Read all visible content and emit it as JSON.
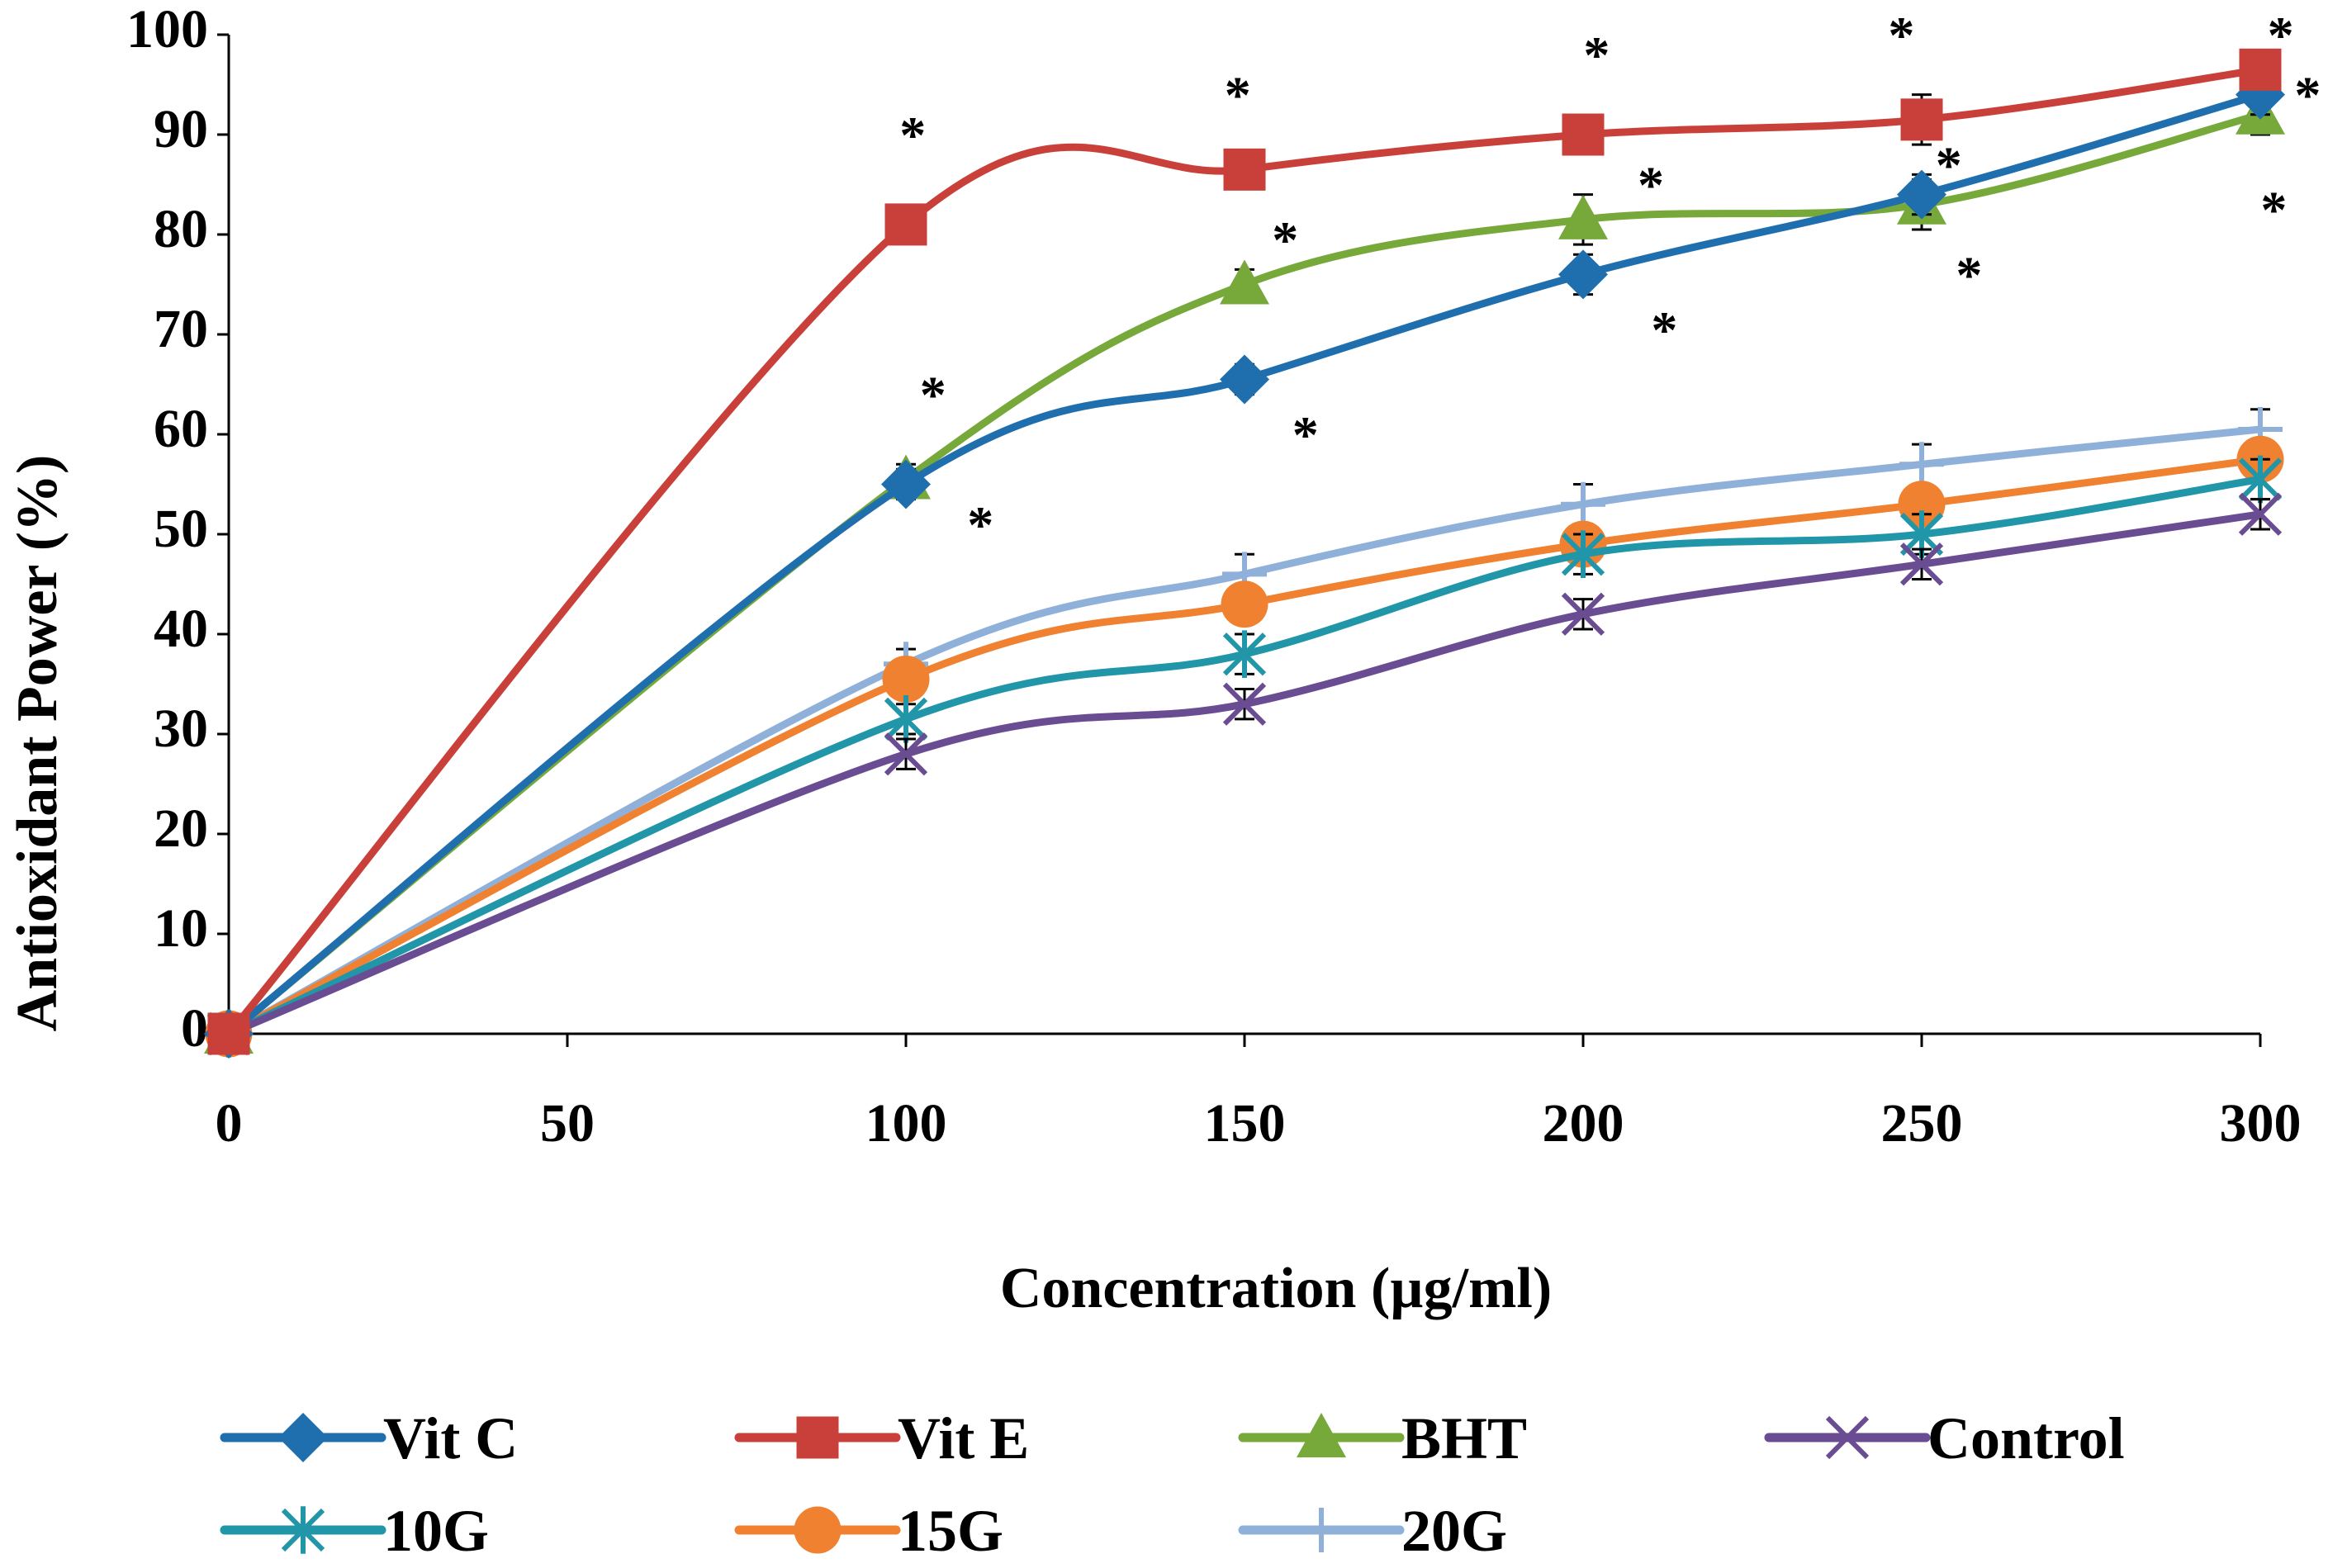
{
  "chart_data": {
    "type": "line",
    "title": "",
    "xlabel": "Concentration (µg/ml)",
    "ylabel": "Antioxidant Power (%)",
    "x": [
      0,
      100,
      150,
      200,
      250,
      300
    ],
    "xlim": [
      0,
      300
    ],
    "ylim": [
      0,
      100
    ],
    "xticks": [
      "0",
      "50",
      "100",
      "150",
      "200",
      "250",
      "300"
    ],
    "yticks": [
      "0",
      "10",
      "20",
      "30",
      "40",
      "50",
      "60",
      "70",
      "80",
      "90",
      "100"
    ],
    "significance_marker": "*",
    "legend_position": "bottom",
    "series": [
      {
        "name": "Vit C",
        "color": "#1F6FAE",
        "marker": "diamond",
        "values": [
          0,
          55,
          65.5,
          76,
          84,
          94
        ],
        "errors": [
          0,
          1.5,
          1.5,
          2,
          2,
          2
        ]
      },
      {
        "name": "Vit E",
        "color": "#C9403A",
        "marker": "square",
        "values": [
          0,
          81,
          86.5,
          90,
          91.5,
          96.5
        ],
        "errors": [
          0,
          1.5,
          1.5,
          1.5,
          2.5,
          1.5
        ]
      },
      {
        "name": "BHT",
        "color": "#76A83A",
        "marker": "triangle",
        "values": [
          0,
          55.5,
          75,
          81.5,
          83,
          92
        ],
        "errors": [
          0,
          1.5,
          1.5,
          2.5,
          2.5,
          2
        ]
      },
      {
        "name": "Control",
        "color": "#6A4C93",
        "marker": "x",
        "values": [
          0,
          28,
          33,
          42,
          47,
          52
        ],
        "errors": [
          0,
          1.5,
          1.5,
          1.5,
          1.5,
          1.5
        ]
      },
      {
        "name": "10G",
        "color": "#2196A8",
        "marker": "asterisk",
        "values": [
          0,
          31.5,
          38,
          48,
          50,
          55.5
        ],
        "errors": [
          0,
          1.5,
          2,
          2,
          2,
          2
        ]
      },
      {
        "name": "15G",
        "color": "#EF8130",
        "marker": "circle",
        "values": [
          0,
          35.5,
          43,
          49,
          53,
          57.5
        ],
        "errors": [
          0,
          1.5,
          2,
          2,
          2,
          2
        ]
      },
      {
        "name": "20G",
        "color": "#8FB1D9",
        "marker": "plus",
        "values": [
          0,
          37,
          46,
          53,
          57,
          60.5
        ],
        "errors": [
          0,
          1.5,
          2,
          2,
          2,
          2
        ]
      }
    ],
    "annotations": [
      {
        "text": "*",
        "x": 101,
        "y": 90.5
      },
      {
        "text": "*",
        "x": 104,
        "y": 64.5
      },
      {
        "text": "*",
        "x": 111,
        "y": 51.5
      },
      {
        "text": "*",
        "x": 149,
        "y": 94.5
      },
      {
        "text": "*",
        "x": 156,
        "y": 80
      },
      {
        "text": "*",
        "x": 159,
        "y": 60.5
      },
      {
        "text": "*",
        "x": 202,
        "y": 98.5
      },
      {
        "text": "*",
        "x": 210,
        "y": 85.5
      },
      {
        "text": "*",
        "x": 212,
        "y": 71
      },
      {
        "text": "*",
        "x": 247,
        "y": 100.5
      },
      {
        "text": "*",
        "x": 254,
        "y": 87.5
      },
      {
        "text": "*",
        "x": 257,
        "y": 76.5
      },
      {
        "text": "*",
        "x": 303,
        "y": 100.5
      },
      {
        "text": "*",
        "x": 307,
        "y": 94.5
      },
      {
        "text": "*",
        "x": 302,
        "y": 83
      }
    ]
  }
}
